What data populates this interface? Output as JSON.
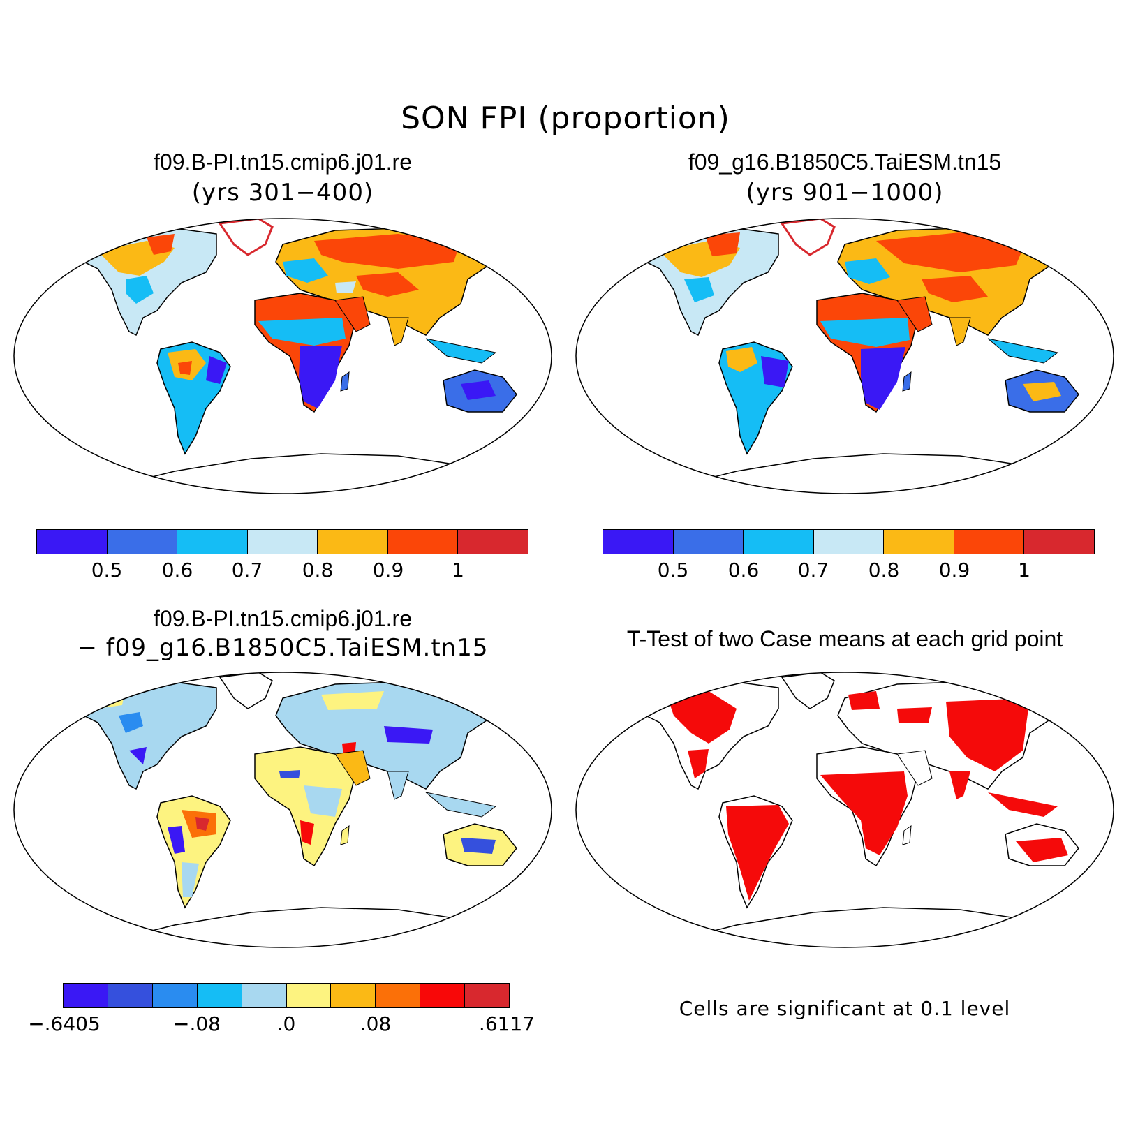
{
  "title": "SON FPI (proportion)",
  "panels": {
    "top_left": {
      "title": "f09.B-PI.tn15.cmip6.j01.re",
      "subtitle": "(yrs 301−400)"
    },
    "top_right": {
      "title": "f09_g16.B1850C5.TaiESM.tn15",
      "subtitle": "(yrs 901−1000)"
    },
    "bottom_left": {
      "title": "f09.B-PI.tn15.cmip6.j01.re",
      "subtitle": "− f09_g16.B1850C5.TaiESM.tn15"
    },
    "bottom_right": {
      "title": "T-Test of two Case means at each grid point",
      "note": "Cells are significant at 0.1 level"
    }
  },
  "colorbars": {
    "fpi": {
      "colors": [
        "#3a18f5",
        "#3a6ee8",
        "#15bdf5",
        "#c8e8f5",
        "#fbb915",
        "#fb4608",
        "#d8282e"
      ],
      "labels": [
        "0.5",
        "0.6",
        "0.7",
        "0.8",
        "0.9",
        "1"
      ]
    },
    "diff": {
      "colors": [
        "#3a18f5",
        "#3550dd",
        "#2a8cf0",
        "#15bdf5",
        "#a8d8f0",
        "#fdf380",
        "#fbb915",
        "#fb7008",
        "#f80808",
        "#d8282e"
      ],
      "labels": [
        "−.6405",
        "−.08",
        ".0",
        ".08",
        ".6117"
      ]
    }
  },
  "map_colors": {
    "ocean": "#ffffff",
    "coast": "#000000",
    "significant": "#f50a0a"
  }
}
